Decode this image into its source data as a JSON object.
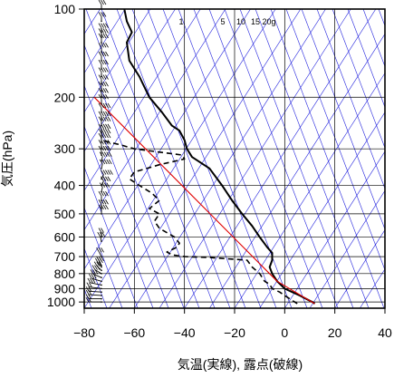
{
  "chart_data": {
    "type": "line",
    "title": "",
    "xlabel": "気温(実線), 露点(破線)",
    "ylabel": "気圧(hPa)",
    "x_scale": "linear",
    "y_scale": "log",
    "xlim": [
      -80,
      40
    ],
    "ylim": [
      1050,
      100
    ],
    "x_ticks": [
      -80,
      -60,
      -40,
      -20,
      0,
      20,
      40
    ],
    "x_tick_labels": [
      "−80",
      "−60",
      "−40",
      "−20",
      "0",
      "20",
      "40"
    ],
    "y_ticks": [
      100,
      200,
      300,
      400,
      500,
      600,
      700,
      800,
      900,
      1000
    ],
    "y_tick_labels": [
      "100",
      "200",
      "300",
      "400",
      "500",
      "600",
      "700",
      "800",
      "900",
      "1000"
    ],
    "mixing_ratio_labels": [
      "1",
      "5",
      "10",
      "15",
      "20g"
    ],
    "mixing_ratio_values": [
      1,
      5,
      10,
      15,
      20
    ],
    "grid": true,
    "colors": {
      "temperature": "#000000",
      "dewpoint": "#000000",
      "parcel": "#e00000",
      "isotherms": "#2222dd",
      "dry_adiabats": "#2222dd",
      "grid": "#000000"
    },
    "series": [
      {
        "style": "solid",
        "points": [
          [
            1013,
            12
          ],
          [
            1000,
            11
          ],
          [
            950,
            6
          ],
          [
            925,
            3
          ],
          [
            900,
            0
          ],
          [
            850,
            -3
          ],
          [
            800,
            -5
          ],
          [
            760,
            -6
          ],
          [
            720,
            -5
          ],
          [
            700,
            -5
          ],
          [
            680,
            -5
          ],
          [
            650,
            -7
          ],
          [
            600,
            -10
          ],
          [
            550,
            -13
          ],
          [
            500,
            -17
          ],
          [
            450,
            -21
          ],
          [
            400,
            -25
          ],
          [
            350,
            -30
          ],
          [
            320,
            -37
          ],
          [
            300,
            -39
          ],
          [
            280,
            -40
          ],
          [
            260,
            -42
          ],
          [
            250,
            -45
          ],
          [
            225,
            -49
          ],
          [
            200,
            -54
          ],
          [
            170,
            -58
          ],
          [
            150,
            -62
          ],
          [
            130,
            -63
          ],
          [
            120,
            -61
          ],
          [
            110,
            -63
          ],
          [
            100,
            -64
          ]
        ]
      },
      {
        "style": "dashed",
        "points": [
          [
            1013,
            5
          ],
          [
            1000,
            4
          ],
          [
            950,
            0
          ],
          [
            925,
            -2
          ],
          [
            900,
            -5
          ],
          [
            870,
            -6
          ],
          [
            850,
            -8
          ],
          [
            800,
            -10
          ],
          [
            760,
            -13
          ],
          [
            720,
            -15
          ],
          [
            705,
            -30
          ],
          [
            700,
            -40
          ],
          [
            690,
            -45
          ],
          [
            675,
            -47
          ],
          [
            650,
            -43
          ],
          [
            630,
            -42
          ],
          [
            600,
            -44
          ],
          [
            580,
            -47
          ],
          [
            560,
            -50
          ],
          [
            530,
            -52
          ],
          [
            500,
            -50
          ],
          [
            480,
            -54
          ],
          [
            450,
            -50
          ],
          [
            425,
            -53
          ],
          [
            400,
            -58
          ],
          [
            380,
            -62
          ],
          [
            360,
            -60
          ],
          [
            340,
            -50
          ],
          [
            325,
            -40
          ],
          [
            315,
            -41
          ],
          [
            300,
            -60
          ],
          [
            290,
            -66
          ],
          [
            285,
            -70
          ],
          [
            280,
            -73
          ]
        ]
      },
      {
        "style": "parcel",
        "points": [
          [
            1013,
            12
          ],
          [
            850,
            -3
          ],
          [
            200,
            -76
          ]
        ]
      }
    ],
    "wind_barbs": [
      {
        "p": 1000,
        "dir": 180,
        "kt": 15
      },
      {
        "p": 975,
        "dir": 180,
        "kt": 15
      },
      {
        "p": 950,
        "dir": 190,
        "kt": 20
      },
      {
        "p": 925,
        "dir": 190,
        "kt": 20
      },
      {
        "p": 900,
        "dir": 200,
        "kt": 20
      },
      {
        "p": 875,
        "dir": 210,
        "kt": 25
      },
      {
        "p": 850,
        "dir": 220,
        "kt": 25
      },
      {
        "p": 825,
        "dir": 230,
        "kt": 25
      },
      {
        "p": 800,
        "dir": 240,
        "kt": 30
      },
      {
        "p": 780,
        "dir": 250,
        "kt": 30
      },
      {
        "p": 760,
        "dir": 255,
        "kt": 30
      },
      {
        "p": 750,
        "dir": 260,
        "kt": 30
      },
      {
        "p": 700,
        "dir": 260,
        "kt": 25
      },
      {
        "p": 620,
        "dir": 265,
        "kt": 25
      },
      {
        "p": 600,
        "dir": 270,
        "kt": 20
      },
      {
        "p": 500,
        "dir": 270,
        "kt": 40
      },
      {
        "p": 480,
        "dir": 270,
        "kt": 40
      },
      {
        "p": 450,
        "dir": 270,
        "kt": 40
      },
      {
        "p": 420,
        "dir": 275,
        "kt": 40
      },
      {
        "p": 400,
        "dir": 280,
        "kt": 40
      },
      {
        "p": 380,
        "dir": 280,
        "kt": 45
      },
      {
        "p": 350,
        "dir": 275,
        "kt": 45
      },
      {
        "p": 330,
        "dir": 275,
        "kt": 45
      },
      {
        "p": 315,
        "dir": 270,
        "kt": 45
      },
      {
        "p": 300,
        "dir": 270,
        "kt": 45
      },
      {
        "p": 285,
        "dir": 270,
        "kt": 45
      },
      {
        "p": 275,
        "dir": 270,
        "kt": 45
      },
      {
        "p": 265,
        "dir": 270,
        "kt": 45
      },
      {
        "p": 250,
        "dir": 270,
        "kt": 45
      },
      {
        "p": 240,
        "dir": 270,
        "kt": 45
      },
      {
        "p": 225,
        "dir": 270,
        "kt": 45
      },
      {
        "p": 210,
        "dir": 270,
        "kt": 40
      },
      {
        "p": 200,
        "dir": 270,
        "kt": 40
      },
      {
        "p": 190,
        "dir": 270,
        "kt": 40
      },
      {
        "p": 180,
        "dir": 270,
        "kt": 40
      },
      {
        "p": 170,
        "dir": 270,
        "kt": 40
      },
      {
        "p": 160,
        "dir": 270,
        "kt": 40
      },
      {
        "p": 150,
        "dir": 270,
        "kt": 40
      },
      {
        "p": 140,
        "dir": 270,
        "kt": 35
      },
      {
        "p": 130,
        "dir": 270,
        "kt": 35
      },
      {
        "p": 125,
        "dir": 270,
        "kt": 35
      },
      {
        "p": 120,
        "dir": 270,
        "kt": 35
      },
      {
        "p": 110,
        "dir": 270,
        "kt": 30
      },
      {
        "p": 100,
        "dir": 270,
        "kt": 30
      }
    ]
  }
}
